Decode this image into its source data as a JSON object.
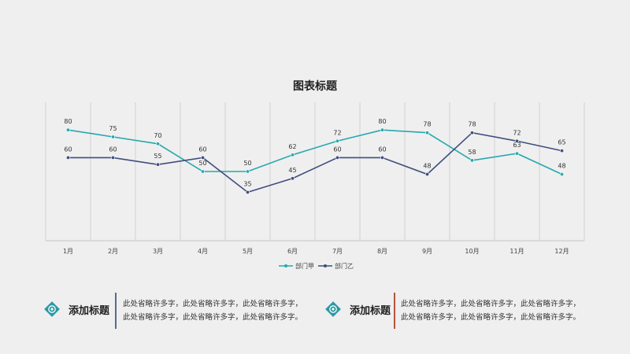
{
  "chart_data": {
    "type": "line",
    "title": "图表标题",
    "categories": [
      "1月",
      "2月",
      "3月",
      "4月",
      "5月",
      "6月",
      "7月",
      "8月",
      "9月",
      "10月",
      "11月",
      "12月"
    ],
    "series": [
      {
        "name": "部门甲",
        "color": "#27a8ae",
        "values": [
          80,
          75,
          70,
          50,
          50,
          62,
          72,
          80,
          78,
          58,
          63,
          48
        ]
      },
      {
        "name": "部门乙",
        "color": "#3f4f7d",
        "values": [
          60,
          60,
          55,
          60,
          35,
          45,
          60,
          60,
          48,
          78,
          72,
          65
        ]
      }
    ],
    "ylim": [
      0,
      100
    ],
    "xlabel": "",
    "ylabel": "",
    "grid": "vertical",
    "legend": "bottom"
  },
  "info_left": {
    "heading": "添加标题",
    "line1": "此处省略许多字，此处省略许多字，此处省略许多字，",
    "line2": "此处省略许多字，此处省略许多字，此处省略许多字。",
    "accent": "#596b8c",
    "icon": "target-icon"
  },
  "info_right": {
    "heading": "添加标题",
    "line1": "此处省略许多字，此处省略许多字，此处省略许多字，",
    "line2": "此处省略许多字，此处省略许多字，此处省略许多字。",
    "accent": "#b5553d",
    "icon": "target-icon"
  }
}
